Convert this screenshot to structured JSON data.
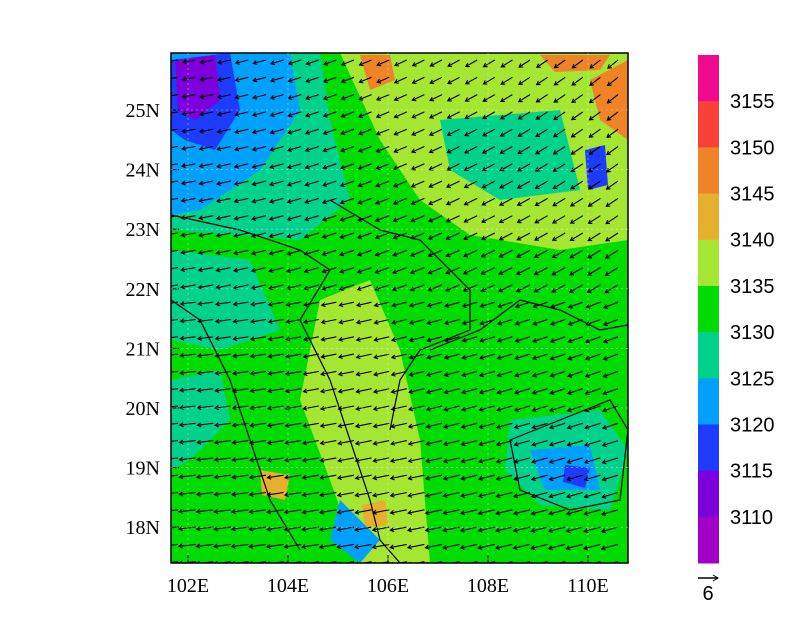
{
  "map": {
    "lon_ticks": [
      "102E",
      "104E",
      "106E",
      "108E",
      "110E"
    ],
    "lat_ticks": [
      "25N",
      "24N",
      "23N",
      "22N",
      "21N",
      "20N",
      "19N",
      "18N"
    ],
    "colorbar": {
      "labels": [
        "3155",
        "3150",
        "3145",
        "3140",
        "3135",
        "3130",
        "3125",
        "3120",
        "3115",
        "3110"
      ],
      "colors": [
        "#f00a8c",
        "#fa4137",
        "#f08228",
        "#e6af2d",
        "#a5e632",
        "#00dc00",
        "#00d28c",
        "#00a0ff",
        "#1e3cff",
        "#7d00dc",
        "#a000c8"
      ]
    },
    "reference_vector": {
      "label": "6"
    }
  }
}
